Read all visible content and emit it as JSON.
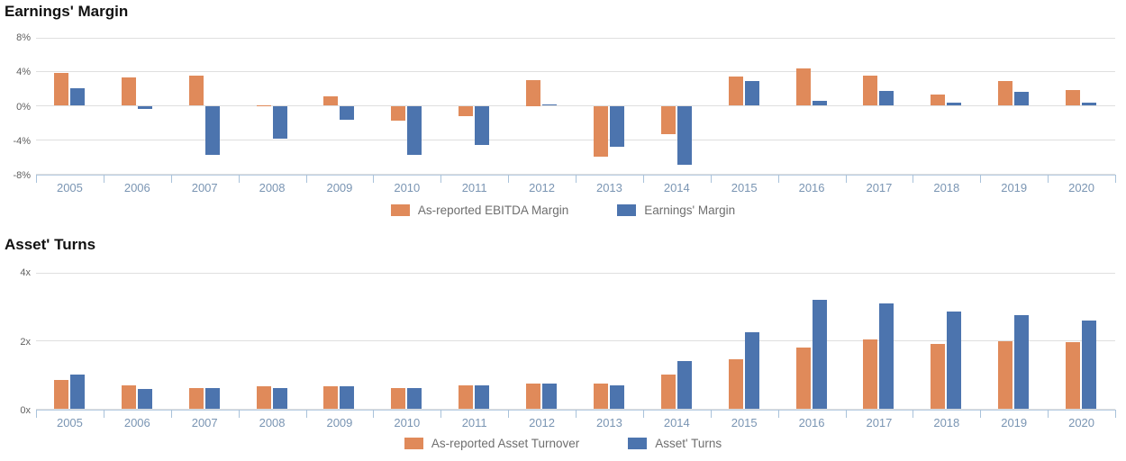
{
  "page": {
    "background": "#ffffff",
    "axis_color": "#B7CCE2",
    "gridline_color": "#DFDFDF",
    "x_label_color": "#7A95B3",
    "y_label_color": "#606060"
  },
  "chart_data": [
    {
      "type": "bar",
      "title": "Earnings' Margin",
      "categories": [
        "2005",
        "2006",
        "2007",
        "2008",
        "2009",
        "2010",
        "2011",
        "2012",
        "2013",
        "2014",
        "2015",
        "2016",
        "2017",
        "2018",
        "2019",
        "2020"
      ],
      "series": [
        {
          "name": "As-reported EBITDA Margin",
          "color": "#E08A5A",
          "values": [
            3.9,
            3.3,
            3.6,
            0.1,
            1.1,
            -1.7,
            -1.2,
            3.0,
            -6.0,
            -3.3,
            3.4,
            4.4,
            3.6,
            1.3,
            2.9,
            1.9
          ]
        },
        {
          "name": "Earnings' Margin",
          "color": "#4C74AE",
          "values": [
            2.1,
            -0.4,
            -5.8,
            -3.9,
            -1.6,
            -5.8,
            -4.6,
            0.2,
            -4.8,
            -6.9,
            2.9,
            0.6,
            1.8,
            0.4,
            1.6,
            0.4
          ]
        }
      ],
      "ylim": [
        -8,
        8
      ],
      "yticks": [
        {
          "label": "8%",
          "value": 8
        },
        {
          "label": "4%",
          "value": 4
        },
        {
          "label": "0%",
          "value": 0
        },
        {
          "label": "-4%",
          "value": -4
        },
        {
          "label": "-8%",
          "value": -8
        }
      ],
      "grid": true,
      "legend_position": "bottom"
    },
    {
      "type": "bar",
      "title": "Asset' Turns",
      "categories": [
        "2005",
        "2006",
        "2007",
        "2008",
        "2009",
        "2010",
        "2011",
        "2012",
        "2013",
        "2014",
        "2015",
        "2016",
        "2017",
        "2018",
        "2019",
        "2020"
      ],
      "series": [
        {
          "name": "As-reported Asset Turnover",
          "color": "#E08A5A",
          "values": [
            0.85,
            0.7,
            0.6,
            0.65,
            0.65,
            0.6,
            0.68,
            0.75,
            0.75,
            1.0,
            1.45,
            1.8,
            2.05,
            1.9,
            2.0,
            1.95
          ]
        },
        {
          "name": "Asset' Turns",
          "color": "#4C74AE",
          "values": [
            1.0,
            0.57,
            0.6,
            0.6,
            0.65,
            0.62,
            0.68,
            0.75,
            0.7,
            1.4,
            2.25,
            3.2,
            3.1,
            2.85,
            2.75,
            2.6
          ]
        }
      ],
      "ylim": [
        0,
        4
      ],
      "yticks": [
        {
          "label": "4x",
          "value": 4
        },
        {
          "label": "2x",
          "value": 2
        },
        {
          "label": "0x",
          "value": 0
        }
      ],
      "grid": true,
      "legend_position": "bottom"
    }
  ]
}
